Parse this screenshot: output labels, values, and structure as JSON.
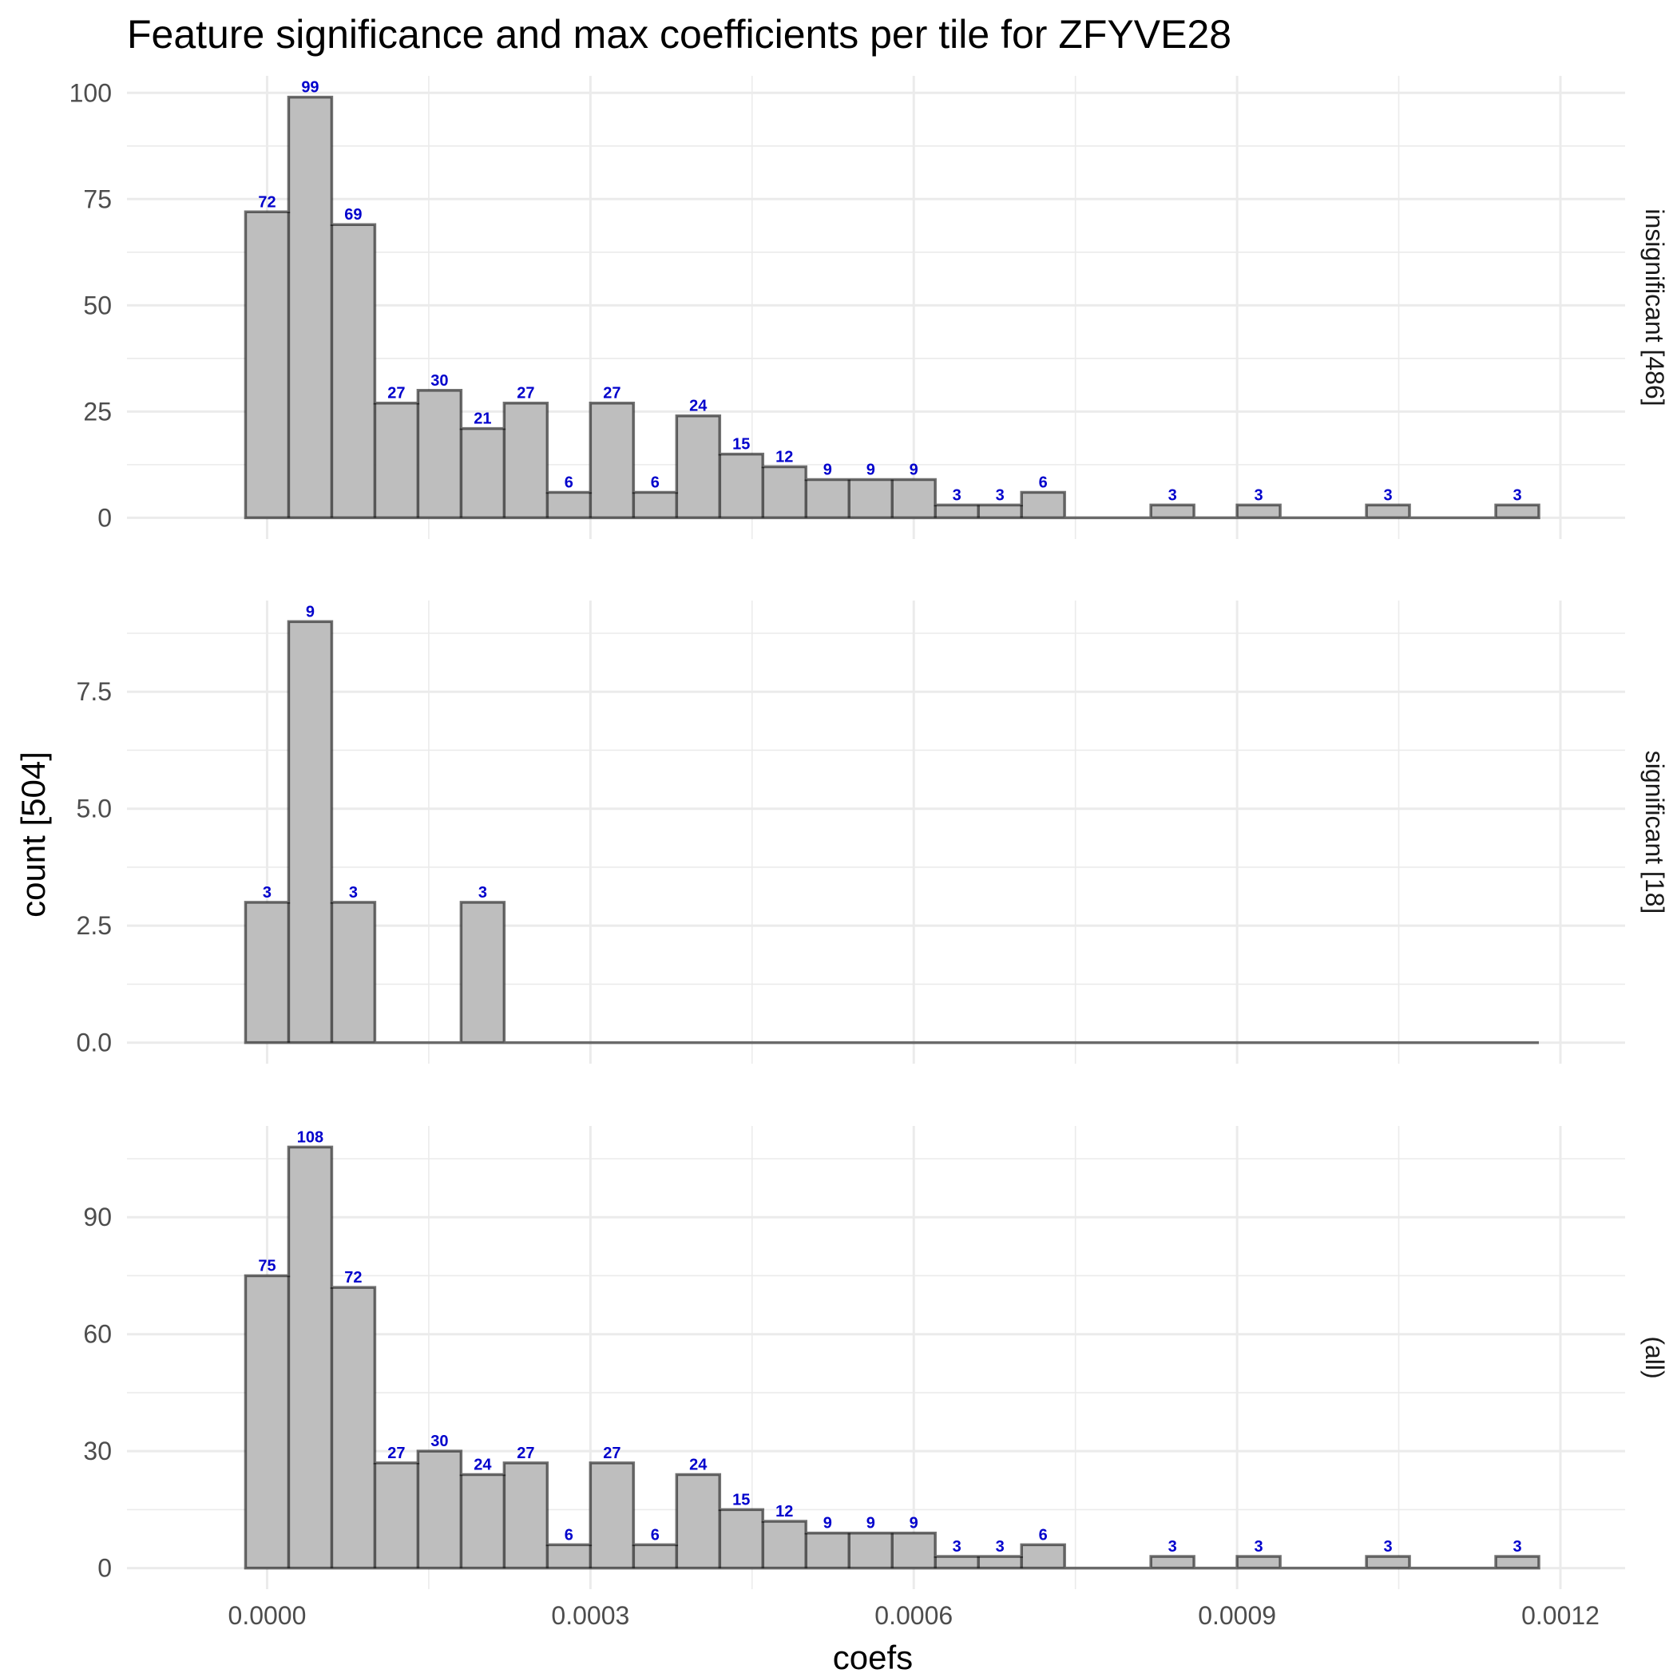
{
  "chart_data": {
    "type": "bar",
    "title": "Feature significance and max coefficients per tile for ZFYVE28",
    "xlabel": "coefs",
    "ylabel": "count [504]",
    "xlim": [
      -0.00013,
      0.00126
    ],
    "x_ticks": [
      "0.0000",
      "0.0003",
      "0.0006",
      "0.0009",
      "0.0012"
    ],
    "x_tick_values": [
      0,
      0.0003,
      0.0006,
      0.0009,
      0.0012
    ],
    "bin_start": -2e-05,
    "bin_width": 4e-05,
    "grid": true,
    "facets": [
      {
        "name": "insignificant [486]",
        "ylim": [
          -5,
          104
        ],
        "y_ticks": [
          "0",
          "25",
          "50",
          "75",
          "100"
        ],
        "y_tick_values": [
          0,
          25,
          50,
          75,
          100
        ],
        "values": [
          72,
          99,
          69,
          27,
          30,
          21,
          27,
          6,
          27,
          6,
          24,
          15,
          12,
          9,
          9,
          9,
          3,
          3,
          6,
          0,
          0,
          3,
          0,
          3,
          0,
          0,
          3,
          0,
          0,
          3
        ],
        "labels": [
          "72",
          "99",
          "69",
          "27",
          "30",
          "21",
          "27",
          "6",
          "27",
          "6",
          "24",
          "15",
          "12",
          "9",
          "9",
          "9",
          "3",
          "3",
          "6",
          "",
          "",
          "3",
          "",
          "3",
          "",
          "",
          "3",
          "",
          "",
          "3"
        ]
      },
      {
        "name": "significant [18]",
        "ylim": [
          -0.45,
          9.45
        ],
        "y_ticks": [
          "0.0",
          "2.5",
          "5.0",
          "7.5"
        ],
        "y_tick_values": [
          0,
          2.5,
          5,
          7.5
        ],
        "values": [
          3,
          9,
          3,
          0,
          0,
          3,
          0,
          0,
          0,
          0,
          0,
          0,
          0,
          0,
          0,
          0,
          0,
          0,
          0,
          0,
          0,
          0,
          0,
          0,
          0,
          0,
          0,
          0,
          0,
          0
        ],
        "labels": [
          "3",
          "9",
          "3",
          "",
          "",
          "3",
          "",
          "",
          "",
          "",
          "",
          "",
          "",
          "",
          "",
          "",
          "",
          "",
          "",
          "",
          "",
          "",
          "",
          "",
          "",
          "",
          "",
          "",
          "",
          ""
        ]
      },
      {
        "name": "(all)",
        "ylim": [
          -5.4,
          113.4
        ],
        "y_ticks": [
          "0",
          "30",
          "60",
          "90"
        ],
        "y_tick_values": [
          0,
          30,
          60,
          90
        ],
        "values": [
          75,
          108,
          72,
          27,
          30,
          24,
          27,
          6,
          27,
          6,
          24,
          15,
          12,
          9,
          9,
          9,
          3,
          3,
          6,
          0,
          0,
          3,
          0,
          3,
          0,
          0,
          3,
          0,
          0,
          3
        ],
        "labels": [
          "75",
          "108",
          "72",
          "27",
          "30",
          "24",
          "27",
          "6",
          "27",
          "6",
          "24",
          "15",
          "12",
          "9",
          "9",
          "9",
          "3",
          "3",
          "6",
          "",
          "",
          "3",
          "",
          "3",
          "",
          "",
          "3",
          "",
          "",
          "3"
        ]
      }
    ]
  }
}
